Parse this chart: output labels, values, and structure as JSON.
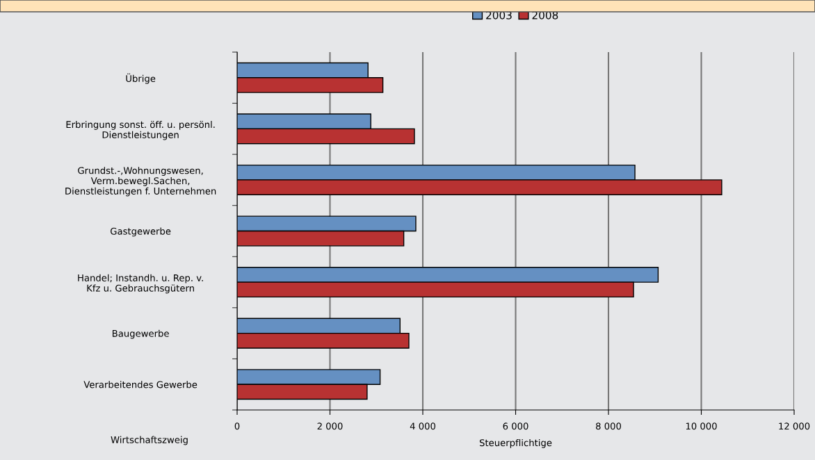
{
  "chart_data": {
    "type": "bar",
    "orientation": "horizontal",
    "categories": [
      "Übrige",
      "Erbringung sonst. öff. u. persönl.\nDienstleistungen",
      "Grundst.-,Wohnungswesen,\nVerm.bewegl.Sachen,\nDienstleistungen f. Unternehmen",
      "Gastgewerbe",
      "Handel; Instandh. u. Rep. v.\nKfz u. Gebrauchsgütern",
      "Baugewerbe",
      "Verarbeitendes Gewerbe"
    ],
    "series": [
      {
        "name": "2003",
        "color": "#6590c2",
        "values": [
          2820,
          2880,
          8570,
          3850,
          9070,
          3510,
          3080
        ]
      },
      {
        "name": "2008",
        "color": "#b83232",
        "values": [
          3140,
          3820,
          10440,
          3590,
          8540,
          3700,
          2800
        ]
      }
    ],
    "xlim": [
      0,
      12000
    ],
    "xticks": [
      0,
      {
        "value": 2000,
        "label": "2 000"
      },
      {
        "value": 4000,
        "label": "4 000"
      },
      {
        "value": 6000,
        "label": "6 000"
      },
      {
        "value": 8000,
        "label": "8 000"
      },
      {
        "value": 10000,
        "label": "10 000"
      },
      {
        "value": 12000,
        "label": "12 000"
      }
    ],
    "xlabel": "Steuerpflichtige",
    "annotations": [
      "Wirtschaftszweig"
    ],
    "grid": "x",
    "legend": "top"
  }
}
